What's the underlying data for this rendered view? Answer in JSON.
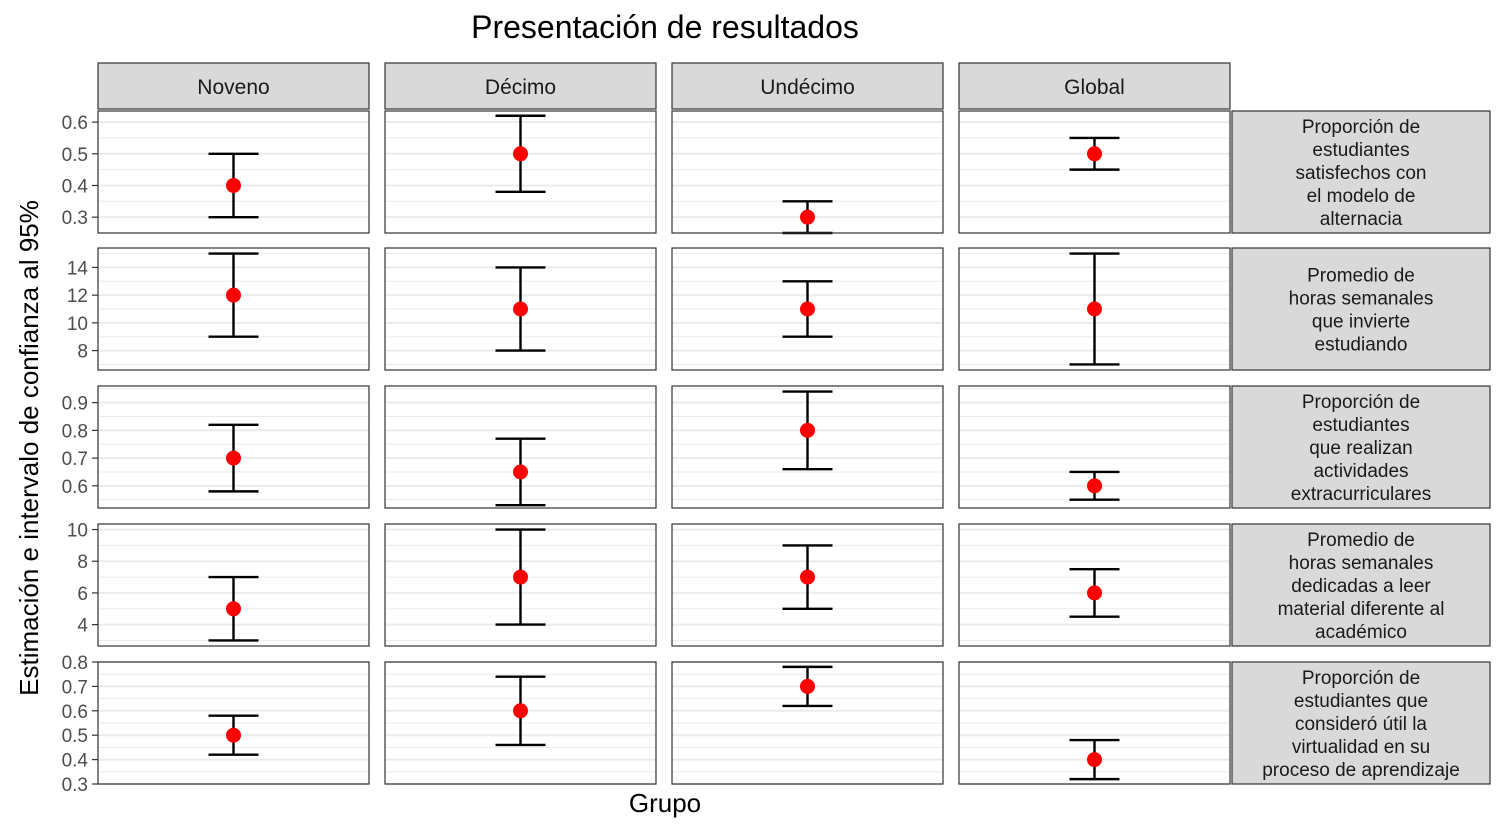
{
  "chart_data": {
    "type": "errorbar",
    "title": "Presentación de resultados",
    "xlabel": "Grupo",
    "ylabel": "Estimación e intervalo de confianza al 95%",
    "columns": [
      "Noveno",
      "Décimo",
      "Undécimo",
      "Global"
    ],
    "colors": {
      "point": "#ff0000",
      "errorbar": "#000000",
      "strip_fill": "#d9d9d9",
      "strip_border": "#333333",
      "panel_border": "#333333",
      "grid": "#ebebeb",
      "tick_text": "#4d4d4d"
    },
    "rows": [
      {
        "label": [
          "Proporción de",
          "estudiantes",
          "satisfechos con",
          "el modelo de",
          "alternacia"
        ],
        "ylim": [
          0.25,
          0.635
        ],
        "ticks": [
          0.3,
          0.4,
          0.5,
          0.6
        ],
        "tick_labels": [
          "0.3",
          "0.4",
          "0.5",
          "0.6"
        ],
        "cells": [
          {
            "estimate": 0.4,
            "lower": 0.3,
            "upper": 0.5
          },
          {
            "estimate": 0.5,
            "lower": 0.38,
            "upper": 0.62
          },
          {
            "estimate": 0.3,
            "lower": 0.25,
            "upper": 0.35
          },
          {
            "estimate": 0.5,
            "lower": 0.45,
            "upper": 0.55
          }
        ]
      },
      {
        "label": [
          "Promedio de",
          "horas semanales",
          "que invierte",
          "estudiando"
        ],
        "ylim": [
          6.6,
          15.4
        ],
        "ticks": [
          8,
          10,
          12,
          14
        ],
        "tick_labels": [
          "8",
          "10",
          "12",
          "14"
        ],
        "cells": [
          {
            "estimate": 12,
            "lower": 9,
            "upper": 15
          },
          {
            "estimate": 11,
            "lower": 8,
            "upper": 14
          },
          {
            "estimate": 11,
            "lower": 9,
            "upper": 13
          },
          {
            "estimate": 11,
            "lower": 7,
            "upper": 15
          }
        ]
      },
      {
        "label": [
          "Proporción de",
          "estudiantes",
          "que realizan",
          "actividades",
          "extracurriculares"
        ],
        "ylim": [
          0.52,
          0.96
        ],
        "ticks": [
          0.6,
          0.7,
          0.8,
          0.9
        ],
        "tick_labels": [
          "0.6",
          "0.7",
          "0.8",
          "0.9"
        ],
        "cells": [
          {
            "estimate": 0.7,
            "lower": 0.58,
            "upper": 0.82
          },
          {
            "estimate": 0.65,
            "lower": 0.53,
            "upper": 0.77
          },
          {
            "estimate": 0.8,
            "lower": 0.66,
            "upper": 0.94
          },
          {
            "estimate": 0.6,
            "lower": 0.55,
            "upper": 0.65
          }
        ]
      },
      {
        "label": [
          "Promedio de",
          "horas semanales",
          "dedicadas a leer",
          "material diferente al",
          "académico"
        ],
        "ylim": [
          2.65,
          10.35
        ],
        "ticks": [
          4,
          6,
          8,
          10
        ],
        "tick_labels": [
          "4",
          "6",
          "8",
          "10"
        ],
        "cells": [
          {
            "estimate": 5,
            "lower": 3,
            "upper": 7
          },
          {
            "estimate": 7,
            "lower": 4,
            "upper": 10
          },
          {
            "estimate": 7,
            "lower": 5,
            "upper": 9
          },
          {
            "estimate": 6,
            "lower": 4.5,
            "upper": 7.5
          }
        ]
      },
      {
        "label": [
          "Proporción de",
          "estudiantes que",
          "consideró útil la",
          "virtualidad en su",
          "proceso de aprendizaje"
        ],
        "ylim": [
          0.3,
          0.8
        ],
        "ticks": [
          0.3,
          0.4,
          0.5,
          0.6,
          0.7,
          0.8
        ],
        "tick_labels": [
          "0.3",
          "0.4",
          "0.5",
          "0.6",
          "0.7",
          "0.8"
        ],
        "cells": [
          {
            "estimate": 0.5,
            "lower": 0.42,
            "upper": 0.58
          },
          {
            "estimate": 0.6,
            "lower": 0.46,
            "upper": 0.74
          },
          {
            "estimate": 0.7,
            "lower": 0.62,
            "upper": 0.78
          },
          {
            "estimate": 0.4,
            "lower": 0.32,
            "upper": 0.48
          }
        ]
      }
    ],
    "grid": true,
    "legend": "none"
  }
}
